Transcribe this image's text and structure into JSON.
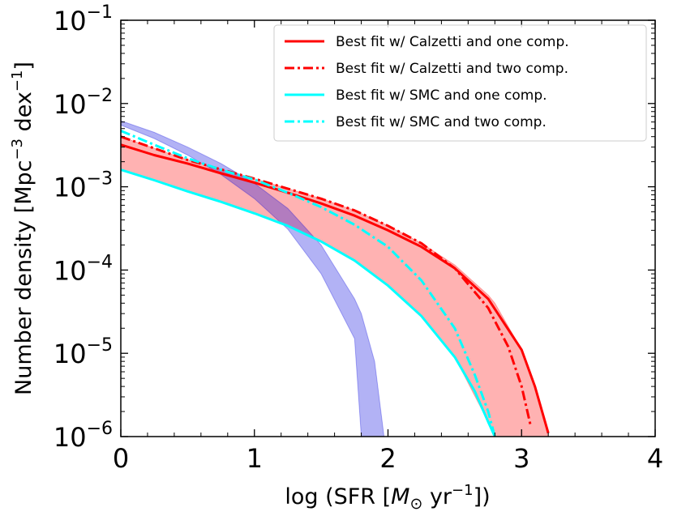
{
  "chart_data": {
    "type": "line",
    "title": "",
    "xlabel": "log (SFR [M⊙ yr⁻¹])",
    "ylabel": "Number density [Mpc⁻³ dex⁻¹]",
    "xlim": [
      0,
      4
    ],
    "ylim": [
      1e-06,
      0.1
    ],
    "yscale": "log",
    "x_ticks": [
      0,
      1,
      2,
      3,
      4
    ],
    "y_ticks": [
      {
        "value": 1e-06,
        "base": "10",
        "exp": "−6"
      },
      {
        "value": 1e-05,
        "base": "10",
        "exp": "−5"
      },
      {
        "value": 0.0001,
        "base": "10",
        "exp": "−4"
      },
      {
        "value": 0.001,
        "base": "10",
        "exp": "−3"
      },
      {
        "value": 0.01,
        "base": "10",
        "exp": "−2"
      },
      {
        "value": 0.1,
        "base": "10",
        "exp": "−1"
      }
    ],
    "legend_position": "top-right",
    "series": [
      {
        "name": "Best fit w/ Calzetti and one comp.",
        "color": "#ff0000",
        "style": "solid",
        "x": [
          0,
          0.25,
          0.5,
          0.75,
          1.0,
          1.25,
          1.5,
          1.75,
          2.0,
          2.25,
          2.5,
          2.75,
          3.0,
          3.1,
          3.2
        ],
        "y": [
          0.0032,
          0.0024,
          0.0019,
          0.00145,
          0.00112,
          0.00085,
          0.00063,
          0.00045,
          0.0003,
          0.00019,
          0.000105,
          4.5e-05,
          1.1e-05,
          4e-06,
          1.1e-06
        ]
      },
      {
        "name": "Best fit w/ Calzetti and two comp.",
        "color": "#ff0000",
        "style": "dashdot",
        "x": [
          0,
          0.25,
          0.5,
          0.75,
          1.0,
          1.25,
          1.5,
          1.75,
          2.0,
          2.25,
          2.5,
          2.75,
          2.9,
          3.0,
          3.07
        ],
        "y": [
          0.004,
          0.0029,
          0.0021,
          0.00162,
          0.00125,
          0.00095,
          0.00072,
          0.00052,
          0.00034,
          0.00021,
          0.000105,
          3.5e-05,
          1.2e-05,
          4e-06,
          1.3e-06
        ]
      },
      {
        "name": "Best fit w/ SMC and one comp.",
        "color": "#00ffff",
        "style": "solid",
        "x": [
          0,
          0.25,
          0.5,
          0.75,
          1.0,
          1.25,
          1.5,
          1.75,
          2.0,
          2.25,
          2.5,
          2.65,
          2.75,
          2.8
        ],
        "y": [
          0.0016,
          0.0012,
          0.00088,
          0.00066,
          0.00048,
          0.00034,
          0.00022,
          0.00013,
          6.5e-05,
          2.8e-05,
          9e-06,
          3.5e-06,
          1.5e-06,
          1e-06
        ]
      },
      {
        "name": "Best fit w/ SMC and two comp.",
        "color": "#00ffff",
        "style": "dashdot",
        "x": [
          0,
          0.25,
          0.5,
          0.75,
          1.0,
          1.25,
          1.5,
          1.75,
          2.0,
          2.25,
          2.5,
          2.65,
          2.75,
          2.8
        ],
        "y": [
          0.0047,
          0.0032,
          0.0022,
          0.0016,
          0.00122,
          0.00085,
          0.00057,
          0.00035,
          0.00019,
          7.5e-05,
          2e-05,
          5.5e-06,
          2e-06,
          1e-06
        ]
      }
    ],
    "bands": [
      {
        "name": "red-shaded-region",
        "color": "#ff0000",
        "opacity": 0.3,
        "x": [
          0,
          0.25,
          0.5,
          0.75,
          1.0,
          1.25,
          1.5,
          1.75,
          2.0,
          2.25,
          2.5,
          2.75,
          2.8,
          3.0,
          3.1,
          3.2
        ],
        "upper": [
          0.004,
          0.0029,
          0.0021,
          0.00162,
          0.00125,
          0.00095,
          0.00072,
          0.00052,
          0.00034,
          0.00021,
          0.000115,
          5e-05,
          4e-05,
          1.1e-05,
          4e-06,
          1e-06
        ],
        "lower": [
          0.0016,
          0.0012,
          0.00088,
          0.00066,
          0.00048,
          0.00034,
          0.00022,
          0.00013,
          6.5e-05,
          2.8e-05,
          9e-06,
          1.5e-06,
          1e-06,
          1e-06,
          1e-06,
          1e-06
        ]
      },
      {
        "name": "blue-shaded-region",
        "color": "#0000dd",
        "opacity": 0.3,
        "x": [
          0,
          0.25,
          0.5,
          0.75,
          1.0,
          1.25,
          1.5,
          1.75,
          1.8,
          1.9,
          1.97
        ],
        "upper": [
          0.0062,
          0.0045,
          0.003,
          0.0019,
          0.0011,
          0.00055,
          0.0002,
          4.5e-05,
          3e-05,
          8e-06,
          1e-06
        ],
        "lower": [
          0.0055,
          0.0038,
          0.0024,
          0.0014,
          0.00072,
          0.00031,
          9e-05,
          1.5e-05,
          1e-06,
          1e-06,
          1e-06
        ]
      }
    ]
  }
}
